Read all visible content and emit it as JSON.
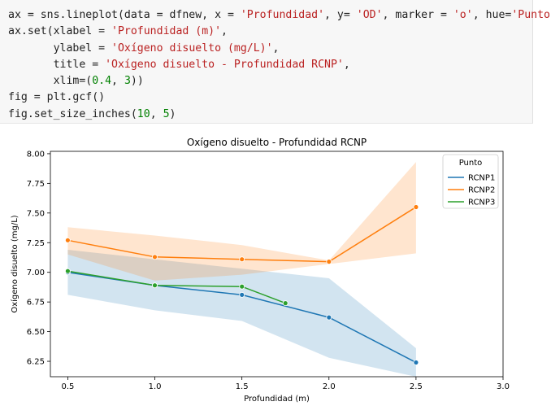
{
  "code_cell": {
    "lines": [
      [
        {
          "t": "ax = sns.lineplot(data = dfnew, x = "
        },
        {
          "t": "'Profundidad'",
          "c": "str"
        },
        {
          "t": ", y= "
        },
        {
          "t": "'OD'",
          "c": "str"
        },
        {
          "t": ", marker = "
        },
        {
          "t": "'o'",
          "c": "str"
        },
        {
          "t": ", hue="
        },
        {
          "t": "'Punto'",
          "c": "str"
        },
        {
          "t": ")"
        }
      ],
      [
        {
          "t": "ax.set(xlabel = "
        },
        {
          "t": "'Profundidad (m)'",
          "c": "str"
        },
        {
          "t": ","
        }
      ],
      [
        {
          "t": "       ylabel = "
        },
        {
          "t": "'Oxígeno disuelto (mg/L)'",
          "c": "str"
        },
        {
          "t": ","
        }
      ],
      [
        {
          "t": "       title = "
        },
        {
          "t": "'Oxígeno disuelto - Profundidad RCNP'",
          "c": "str"
        },
        {
          "t": ","
        }
      ],
      [
        {
          "t": "       xlim=("
        },
        {
          "t": "0.4",
          "c": "num"
        },
        {
          "t": ", "
        },
        {
          "t": "3",
          "c": "num"
        },
        {
          "t": "))"
        }
      ],
      [
        {
          "t": "fig = plt.gcf()"
        }
      ],
      [
        {
          "t": "fig.set_size_inches("
        },
        {
          "t": "10",
          "c": "num"
        },
        {
          "t": ", "
        },
        {
          "t": "5",
          "c": "num"
        },
        {
          "t": ")"
        }
      ]
    ]
  },
  "colors": {
    "string": "#ba2121",
    "number": "#008000",
    "RCNP1": "#1f77b4",
    "RCNP2": "#ff7f0e",
    "RCNP3": "#2ca02c"
  },
  "chart_data": {
    "type": "line",
    "title": "Oxígeno disuelto - Profundidad RCNP",
    "xlabel": "Profundidad (m)",
    "ylabel": "Oxígeno disuelto (mg/L)",
    "xlim": [
      0.4,
      3.0
    ],
    "ylim": [
      6.12,
      8.02
    ],
    "xticks": [
      0.5,
      1.0,
      1.5,
      2.0,
      2.5,
      3.0
    ],
    "xtick_labels": [
      "0.5",
      "1.0",
      "1.5",
      "2.0",
      "2.5",
      "3.0"
    ],
    "yticks": [
      6.25,
      6.5,
      6.75,
      7.0,
      7.25,
      7.5,
      7.75,
      8.0
    ],
    "ytick_labels": [
      "6.25",
      "6.50",
      "6.75",
      "7.00",
      "7.25",
      "7.50",
      "7.75",
      "8.00"
    ],
    "legend": {
      "title": "Punto",
      "position": "top-right"
    },
    "series": [
      {
        "name": "RCNP1",
        "x": [
          0.5,
          1.0,
          1.5,
          2.0,
          2.5
        ],
        "y": [
          7.0,
          6.89,
          6.81,
          6.62,
          6.24
        ],
        "ci_low": [
          6.81,
          6.68,
          6.59,
          6.28,
          6.12
        ],
        "ci_high": [
          7.19,
          7.11,
          7.03,
          6.95,
          6.36
        ]
      },
      {
        "name": "RCNP2",
        "x": [
          0.5,
          1.0,
          1.5,
          2.0,
          2.5
        ],
        "y": [
          7.27,
          7.13,
          7.11,
          7.09,
          7.55
        ],
        "ci_low": [
          7.15,
          6.93,
          6.98,
          7.07,
          7.16
        ],
        "ci_high": [
          7.38,
          7.31,
          7.23,
          7.1,
          7.93
        ]
      },
      {
        "name": "RCNP3",
        "x": [
          0.5,
          1.0,
          1.5,
          1.75
        ],
        "y": [
          7.01,
          6.89,
          6.88,
          6.74
        ],
        "ci_low": null,
        "ci_high": null
      }
    ]
  }
}
